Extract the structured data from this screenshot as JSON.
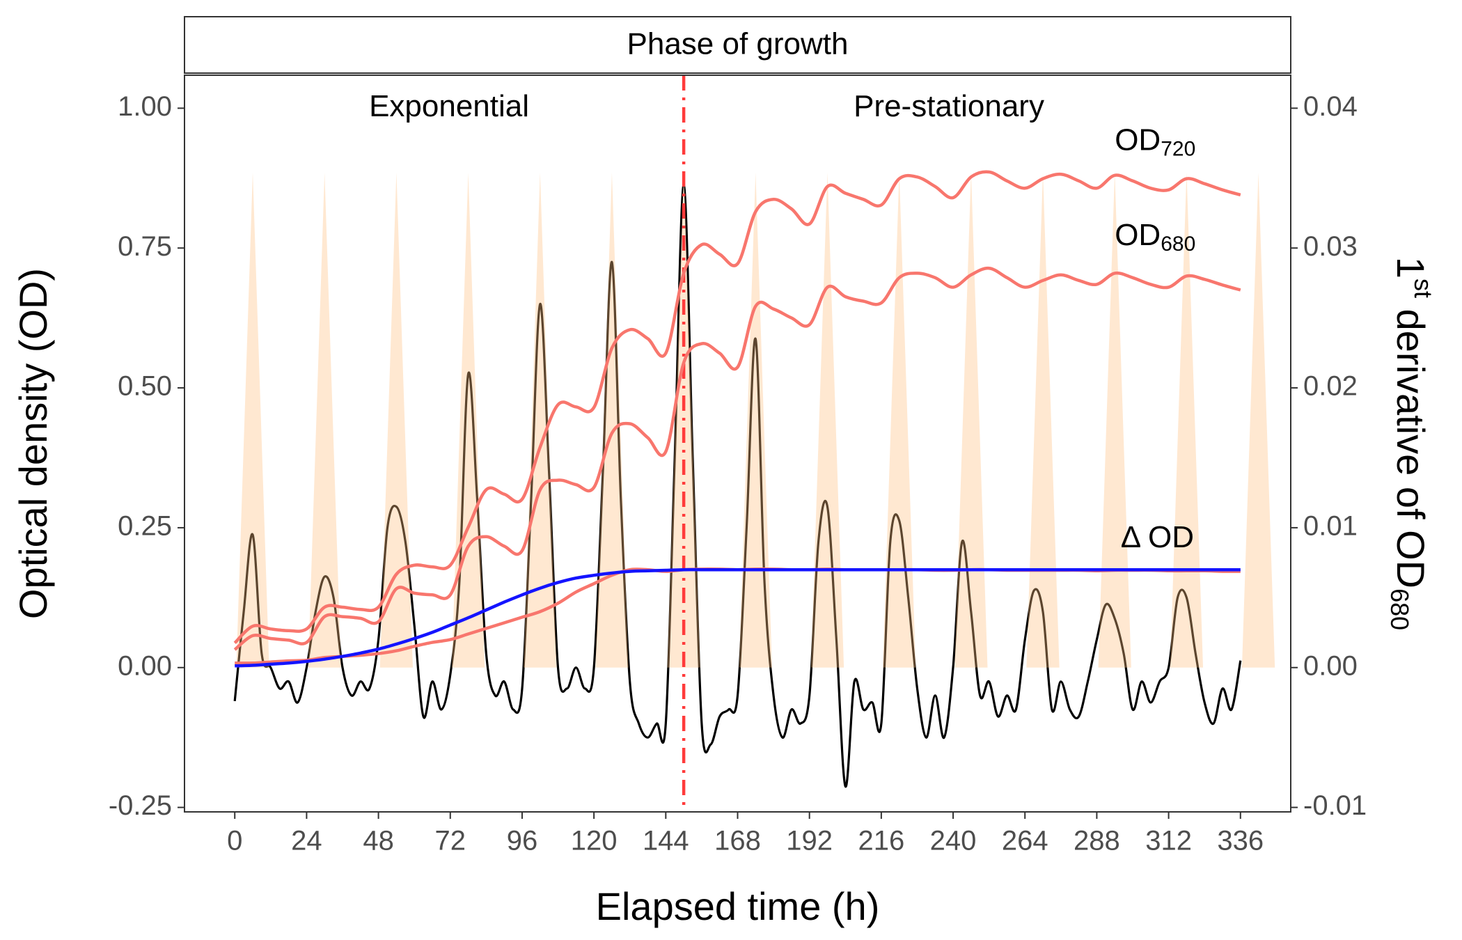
{
  "chart_data": {
    "type": "line",
    "strip": "Phase of growth",
    "xlabel": "Elapsed time (h)",
    "ylabel": "Optical density (OD)",
    "y2label": {
      "text": "1",
      "sup": "st",
      "rest": " derivative of OD",
      "sub": "680"
    },
    "annotations": [
      "Exponential",
      "Pre-stationary"
    ],
    "xlim": [
      -16.8,
      352.8
    ],
    "xticks": [
      0,
      24,
      48,
      72,
      96,
      120,
      144,
      168,
      192,
      216,
      240,
      264,
      288,
      312,
      336
    ],
    "ylim": [
      -0.258,
      1.059
    ],
    "yticks": [
      {
        "value": -0.25,
        "label": "-0.25"
      },
      {
        "value": 0,
        "label": "0.00"
      },
      0.25,
      {
        "value": 0.5,
        "label": "0.50"
      },
      0.75,
      {
        "value": 1,
        "label": "1.00"
      }
    ],
    "y2lim": [
      -0.01032,
      0.04236
    ],
    "y2ticks": [
      -0.01,
      {
        "value": 0,
        "label": "0.00"
      },
      0.01,
      0.02,
      0.03,
      0.04
    ],
    "vline": 150,
    "vline_color": "#FF3B3B",
    "light": {
      "color": "#FFC080",
      "peak": 0.885,
      "periods": [
        [
          0.5,
          6,
          11.5
        ],
        [
          24.5,
          30,
          35.5
        ],
        [
          48.5,
          54,
          59.5
        ],
        [
          72.5,
          78,
          83.5
        ],
        [
          96.5,
          102,
          107.5
        ],
        [
          120.5,
          126,
          131.5
        ],
        [
          144.5,
          150,
          155.5
        ],
        [
          168.5,
          174,
          179.5
        ],
        [
          192.5,
          198,
          203.5
        ],
        [
          216.5,
          222,
          227.5
        ],
        [
          240.5,
          246,
          251.5
        ],
        [
          264.5,
          270,
          275.5
        ],
        [
          288.5,
          294,
          299.5
        ],
        [
          312.5,
          318,
          323.5
        ],
        [
          336.5,
          342,
          347.5
        ]
      ]
    },
    "series": [
      {
        "name": "OD",
        "subscript": "720",
        "color": "#F8766D",
        "x": [
          0,
          6,
          12,
          18,
          24,
          30,
          36,
          42,
          48,
          54,
          60,
          66,
          72,
          78,
          84,
          90,
          96,
          102,
          108,
          114,
          120,
          126,
          132,
          138,
          144,
          150,
          156,
          162,
          168,
          174,
          180,
          186,
          192,
          198,
          204,
          210,
          216,
          222,
          228,
          234,
          240,
          246,
          252,
          258,
          264,
          270,
          276,
          282,
          288,
          294,
          300,
          306,
          312,
          318,
          324,
          330,
          336
        ],
        "values": [
          0.044,
          0.074,
          0.069,
          0.066,
          0.069,
          0.108,
          0.108,
          0.104,
          0.108,
          0.167,
          0.183,
          0.18,
          0.183,
          0.251,
          0.318,
          0.31,
          0.301,
          0.394,
          0.47,
          0.466,
          0.465,
          0.571,
          0.604,
          0.588,
          0.562,
          0.705,
          0.756,
          0.739,
          0.722,
          0.815,
          0.837,
          0.82,
          0.793,
          0.86,
          0.848,
          0.837,
          0.827,
          0.874,
          0.877,
          0.86,
          0.84,
          0.877,
          0.886,
          0.87,
          0.857,
          0.874,
          0.882,
          0.87,
          0.857,
          0.88,
          0.87,
          0.857,
          0.854,
          0.874,
          0.865,
          0.854,
          0.845
        ]
      },
      {
        "name": "OD",
        "subscript": "680",
        "color": "#F8766D",
        "x": [
          0,
          6,
          12,
          18,
          24,
          30,
          36,
          42,
          48,
          54,
          60,
          66,
          72,
          78,
          84,
          90,
          96,
          102,
          108,
          114,
          120,
          126,
          132,
          138,
          144,
          150,
          156,
          162,
          168,
          174,
          180,
          186,
          192,
          198,
          204,
          210,
          216,
          222,
          228,
          234,
          240,
          246,
          252,
          258,
          264,
          270,
          276,
          282,
          288,
          294,
          300,
          306,
          312,
          318,
          324,
          330,
          336
        ],
        "values": [
          0.032,
          0.057,
          0.052,
          0.049,
          0.045,
          0.091,
          0.091,
          0.088,
          0.082,
          0.141,
          0.133,
          0.13,
          0.13,
          0.217,
          0.234,
          0.217,
          0.209,
          0.318,
          0.335,
          0.327,
          0.322,
          0.419,
          0.436,
          0.411,
          0.386,
          0.545,
          0.579,
          0.562,
          0.537,
          0.646,
          0.641,
          0.625,
          0.613,
          0.68,
          0.663,
          0.655,
          0.652,
          0.697,
          0.705,
          0.697,
          0.68,
          0.702,
          0.714,
          0.697,
          0.68,
          0.692,
          0.702,
          0.692,
          0.685,
          0.705,
          0.697,
          0.685,
          0.68,
          0.7,
          0.694,
          0.684,
          0.675
        ]
      },
      {
        "name": "Δ OD",
        "color": "#F8766D",
        "x": [
          0,
          6,
          12,
          18,
          24,
          30,
          36,
          42,
          48,
          54,
          60,
          66,
          72,
          78,
          84,
          90,
          96,
          102,
          108,
          114,
          120,
          126,
          132,
          138,
          144,
          150,
          156,
          162,
          168,
          174,
          180,
          186,
          192,
          198,
          204,
          210,
          216,
          222,
          228,
          234,
          240,
          246,
          252,
          258,
          264,
          270,
          276,
          282,
          288,
          294,
          300,
          306,
          312,
          318,
          324,
          330,
          336
        ],
        "values": [
          0.008,
          0.008,
          0.01,
          0.012,
          0.013,
          0.018,
          0.02,
          0.022,
          0.025,
          0.03,
          0.038,
          0.045,
          0.05,
          0.06,
          0.07,
          0.08,
          0.09,
          0.1,
          0.115,
          0.135,
          0.15,
          0.165,
          0.175,
          0.175,
          0.172,
          0.175,
          0.176,
          0.176,
          0.175,
          0.176,
          0.176,
          0.175,
          0.175,
          0.176,
          0.175,
          0.175,
          0.175,
          0.175,
          0.175,
          0.174,
          0.174,
          0.175,
          0.175,
          0.174,
          0.174,
          0.174,
          0.174,
          0.174,
          0.173,
          0.174,
          0.174,
          0.174,
          0.173,
          0.173,
          0.173,
          0.172,
          0.172
        ]
      },
      {
        "color": "#1414FF",
        "x": [
          0,
          6,
          12,
          18,
          24,
          30,
          36,
          42,
          48,
          54,
          60,
          66,
          72,
          78,
          84,
          90,
          96,
          102,
          108,
          114,
          120,
          126,
          132,
          138,
          144,
          150,
          156,
          162,
          168,
          174,
          180,
          186,
          192,
          198,
          204,
          210,
          216,
          222,
          228,
          234,
          240,
          246,
          252,
          258,
          264,
          270,
          276,
          282,
          288,
          294,
          300,
          306,
          312,
          318,
          324,
          330,
          336
        ],
        "values": [
          0.003,
          0.004,
          0.006,
          0.008,
          0.011,
          0.015,
          0.02,
          0.026,
          0.033,
          0.042,
          0.052,
          0.063,
          0.076,
          0.089,
          0.103,
          0.117,
          0.13,
          0.142,
          0.152,
          0.16,
          0.165,
          0.169,
          0.172,
          0.173,
          0.174,
          0.175,
          0.175,
          0.175,
          0.175,
          0.175,
          0.175,
          0.175,
          0.175,
          0.175,
          0.175,
          0.175,
          0.175,
          0.175,
          0.175,
          0.175,
          0.175,
          0.175,
          0.175,
          0.175,
          0.175,
          0.175,
          0.175,
          0.175,
          0.175,
          0.175,
          0.175,
          0.175,
          0.175,
          0.175,
          0.175,
          0.175,
          0.175
        ]
      },
      {
        "color": "#000000",
        "axis": "y2",
        "x": [
          0,
          3,
          6,
          9,
          12,
          15,
          18,
          21,
          24,
          27,
          30,
          33,
          36,
          39,
          42,
          45,
          48,
          51,
          54,
          57,
          60,
          63,
          66,
          69,
          72,
          75,
          78,
          81,
          84,
          87,
          90,
          93,
          96,
          99,
          102,
          105,
          108,
          111,
          114,
          117,
          120,
          123,
          126,
          129,
          132,
          135,
          138,
          141,
          144,
          147,
          150,
          153,
          156,
          159,
          162,
          165,
          168,
          171,
          174,
          177,
          180,
          183,
          186,
          189,
          192,
          195,
          198,
          201,
          204,
          207,
          210,
          213,
          216,
          219,
          222,
          225,
          228,
          231,
          234,
          237,
          240,
          243,
          246,
          249,
          252,
          255,
          258,
          261,
          264,
          267,
          270,
          273,
          276,
          279,
          282,
          285,
          288,
          291,
          294,
          297,
          300,
          303,
          306,
          309,
          312,
          315,
          318,
          321,
          324,
          327,
          330,
          333,
          336
        ],
        "values": [
          -0.0024,
          0.004,
          0.0095,
          0.001,
          0.0,
          -0.0015,
          -0.001,
          -0.0025,
          0.0,
          0.004,
          0.0065,
          0.005,
          0.0,
          -0.002,
          -0.001,
          -0.0015,
          0.002,
          0.01,
          0.0115,
          0.009,
          0.003,
          -0.0035,
          -0.001,
          -0.003,
          -0.0005,
          0.006,
          0.021,
          0.012,
          0.001,
          -0.002,
          -0.001,
          -0.003,
          -0.0015,
          0.012,
          0.026,
          0.014,
          0.0,
          -0.0015,
          0.0,
          -0.0015,
          0.0,
          0.014,
          0.029,
          0.012,
          -0.001,
          -0.004,
          -0.005,
          -0.004,
          -0.004,
          0.015,
          0.0345,
          0.015,
          -0.004,
          -0.0055,
          -0.0035,
          -0.003,
          -0.002,
          0.01,
          0.0235,
          0.006,
          -0.002,
          -0.005,
          -0.003,
          -0.004,
          -0.002,
          0.009,
          0.0115,
          0.002,
          -0.0085,
          -0.001,
          -0.003,
          -0.0025,
          -0.004,
          0.009,
          0.0105,
          0.005,
          -0.0015,
          -0.005,
          -0.002,
          -0.005,
          0.0,
          0.009,
          0.004,
          -0.002,
          -0.001,
          -0.0035,
          -0.002,
          -0.003,
          0.002,
          0.0055,
          0.004,
          -0.003,
          -0.001,
          -0.003,
          -0.0035,
          -0.001,
          0.002,
          0.0045,
          0.0035,
          0.001,
          -0.003,
          -0.001,
          -0.0025,
          -0.001,
          0.0,
          0.005,
          0.005,
          0.001,
          -0.0025,
          -0.004,
          -0.0015,
          -0.003,
          0.0005
        ]
      }
    ]
  }
}
